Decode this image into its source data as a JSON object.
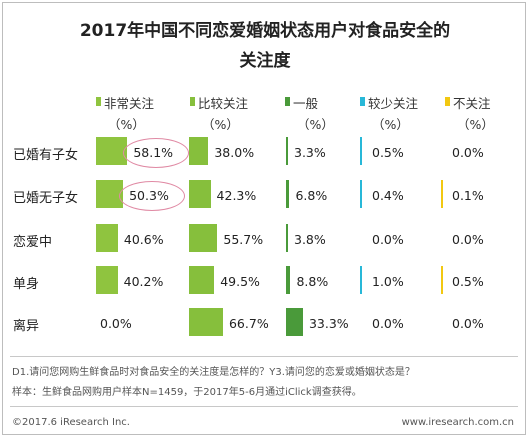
{
  "chart_data": {
    "type": "bar",
    "title_line1": "2017年中国不同恋爱婚姻状态用户对食品安全的",
    "title_line2": "关注度",
    "unit_label": "（%）",
    "series": [
      {
        "name": "非常关注",
        "color": "#8fc43f",
        "values": [
          58.1,
          50.3,
          40.6,
          40.2,
          0.0
        ],
        "labels": [
          "58.1%",
          "50.3%",
          "40.6%",
          "40.2%",
          "0.0%"
        ]
      },
      {
        "name": "比较关注",
        "color": "#86bf3c",
        "values": [
          38.0,
          42.3,
          55.7,
          49.5,
          66.7
        ],
        "labels": [
          "38.0%",
          "42.3%",
          "55.7%",
          "49.5%",
          "66.7%"
        ]
      },
      {
        "name": "一般",
        "color": "#4a9a3a",
        "values": [
          3.3,
          6.8,
          3.8,
          8.8,
          33.3
        ],
        "labels": [
          "3.3%",
          "6.8%",
          "3.8%",
          "8.8%",
          "33.3%"
        ]
      },
      {
        "name": "较少关注",
        "color": "#28b8d8",
        "values": [
          0.5,
          0.4,
          0.0,
          1.0,
          0.0
        ],
        "labels": [
          "0.5%",
          "0.4%",
          "0.0%",
          "1.0%",
          "0.0%"
        ]
      },
      {
        "name": "不关注",
        "color": "#f2c811",
        "values": [
          0.0,
          0.1,
          0.0,
          0.5,
          0.0
        ],
        "labels": [
          "0.0%",
          "0.1%",
          "0.0%",
          "0.5%",
          "0.0%"
        ]
      }
    ],
    "categories": [
      "已婚有子女",
      "已婚无子女",
      "恋爱中",
      "单身",
      "离异"
    ],
    "highlighted": [
      {
        "series": 0,
        "category": 0
      },
      {
        "series": 0,
        "category": 1
      }
    ]
  },
  "notes": {
    "line1": "D1.请问您网购生鲜食品时对食品安全的关注度是怎样的？Y3.请问您的恋爱或婚姻状态是？",
    "line2": "样本：生鲜食品网购用户样本N=1459，于2017年5-6月通过iClick调查获得。"
  },
  "footer": {
    "copyright": "©2017.6 iResearch Inc.",
    "website": "www.iresearch.com.cn"
  }
}
